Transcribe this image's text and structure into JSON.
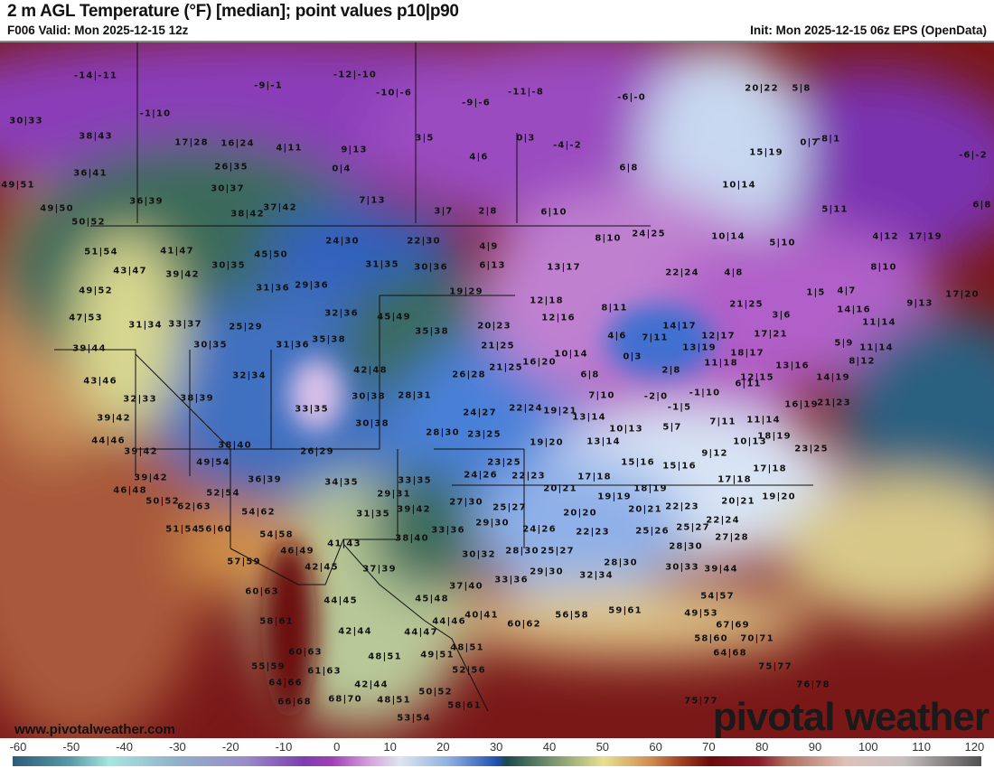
{
  "header": {
    "title": "2 m AGL Temperature (°F) [median]; point values p10|p90",
    "valid": "F006 Valid: Mon 2025-12-15 12z",
    "init": "Init: Mon 2025-12-15 06z EPS (OpenData)"
  },
  "branding": {
    "url": "www.pivotalweather.com",
    "logo": "pivotal weather"
  },
  "colorbar": {
    "unit": "°F",
    "ticks": [
      "-60",
      "-50",
      "-40",
      "-30",
      "-20",
      "-10",
      "0",
      "10",
      "20",
      "30",
      "40",
      "50",
      "60",
      "70",
      "80",
      "90",
      "100",
      "110",
      "120"
    ]
  },
  "points": [
    "-14|-11",
    "-9|-1",
    "-12|-10",
    "-10|-6",
    "-9|-6",
    "-11|-8",
    "-6|-0",
    "20|22",
    "5|8",
    "-1|10",
    "30|33",
    "38|43",
    "17|28",
    "16|24",
    "4|11",
    "9|13",
    "3|5",
    "0|3",
    "-4|-2",
    "0|7",
    "-8|1",
    "15|19",
    "-6|-2",
    "36|41",
    "26|35",
    "0|4",
    "4|6",
    "6|8",
    "10|14",
    "49|51",
    "30|37",
    "36|39",
    "7|13",
    "5|11",
    "6|8",
    "49|50",
    "38|42",
    "37|42",
    "3|7",
    "2|8",
    "6|10",
    "50|52",
    "24|25",
    "8|10",
    "24|30",
    "22|30",
    "10|14",
    "5|10",
    "4|12",
    "17|19",
    "4|9",
    "51|54",
    "41|47",
    "45|50",
    "30|35",
    "31|35",
    "30|36",
    "6|13",
    "13|17",
    "22|24",
    "4|8",
    "8|10",
    "43|47",
    "39|42",
    "49|52",
    "31|36",
    "29|36",
    "19|29",
    "1|5",
    "4|7",
    "17|20",
    "12|18",
    "8|11",
    "21|25",
    "14|16",
    "9|13",
    "47|53",
    "32|36",
    "45|49",
    "12|16",
    "14|17",
    "3|6",
    "17|21",
    "11|14",
    "31|34",
    "33|37",
    "25|29",
    "20|23",
    "35|38",
    "4|6",
    "7|11",
    "12|17",
    "13|19",
    "5|9",
    "11|14",
    "31|36",
    "35|38",
    "30|35",
    "21|25",
    "39|44",
    "10|14",
    "0|3",
    "18|17",
    "16|20",
    "11|18",
    "13|16",
    "8|12",
    "42|48",
    "26|28",
    "21|25",
    "2|8",
    "12|15",
    "43|46",
    "32|34",
    "6|8",
    "14|19",
    "6|11",
    "32|33",
    "38|39",
    "30|38",
    "28|31",
    "7|10",
    "-2|0",
    "-1|10",
    "33|35",
    "22|24",
    "24|27",
    "19|21",
    "-1|5",
    "16|19",
    "21|23",
    "39|42",
    "30|38",
    "13|14",
    "11|14",
    "7|11",
    "10|13",
    "5|7",
    "18|19",
    "28|30",
    "23|25",
    "10|13",
    "44|46",
    "19|20",
    "13|14",
    "23|25",
    "38|40",
    "26|29",
    "39|42",
    "9|12",
    "49|54",
    "15|16",
    "15|16",
    "17|18",
    "23|25",
    "39|42",
    "36|39",
    "24|26",
    "22|23",
    "17|18",
    "17|18",
    "34|35",
    "33|35",
    "46|48",
    "52|54",
    "20|21",
    "19|19",
    "18|19",
    "19|20",
    "29|31",
    "27|30",
    "20|21",
    "50|52",
    "62|63",
    "25|27",
    "20|20",
    "20|21",
    "22|23",
    "54|62",
    "31|35",
    "39|42",
    "22|24",
    "29|30",
    "51|54",
    "56|60",
    "24|26",
    "54|58",
    "22|23",
    "25|26",
    "25|27",
    "33|36",
    "27|28",
    "41|43",
    "38|40",
    "46|49",
    "28|30",
    "25|27",
    "28|30",
    "30|32",
    "57|59",
    "42|45",
    "37|39",
    "29|30",
    "28|30",
    "30|33",
    "39|44",
    "32|34",
    "33|36",
    "37|40",
    "60|63",
    "44|45",
    "45|48",
    "54|57",
    "40|41",
    "59|61",
    "56|58",
    "49|53",
    "58|61",
    "44|46",
    "60|62",
    "42|44",
    "44|47",
    "67|69",
    "58|60",
    "70|71",
    "48|51",
    "49|51",
    "48|51",
    "64|68",
    "60|63",
    "61|63",
    "52|56",
    "55|59",
    "75|77",
    "64|66",
    "42|44",
    "50|52",
    "76|78",
    "58|61",
    "48|51",
    "66|68",
    "68|70",
    "75|77",
    "53|54"
  ]
}
